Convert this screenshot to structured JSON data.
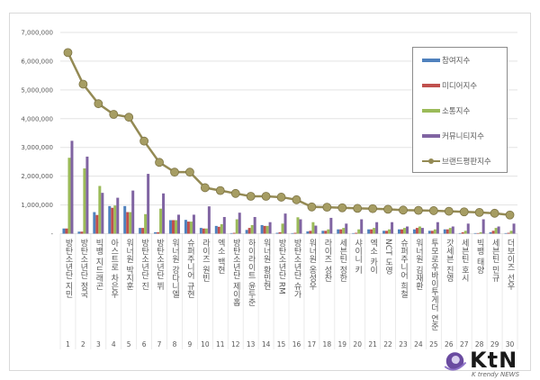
{
  "chart_data": {
    "type": "bar",
    "title": "",
    "xlabel": "",
    "ylabel": "",
    "ylim": [
      0,
      7000000
    ],
    "yticks": [
      "-",
      "1,000,000",
      "2,000,000",
      "3,000,000",
      "4,000,000",
      "5,000,000",
      "6,000,000",
      "7,000,000"
    ],
    "grid": true,
    "legend_position": "top-right",
    "categories": [
      "방탄소년단 지민",
      "방탄소년단 정국",
      "빅뱅 지드래곤",
      "아스트로 차은우",
      "워너원 박지훈",
      "방탄소년단 진",
      "방탄소년단 뷔",
      "워너원 강다니엘",
      "슈퍼주니어 규현",
      "라이즈 원빈",
      "엑소 백현",
      "방탄소년단 제이홉",
      "하이라이트 윤두준",
      "워너원 황민현",
      "방탄소년단 RM",
      "방탄소년단 슈가",
      "워너원 옹성우",
      "라이즈 성찬",
      "세븐틴 정한",
      "샤이니 키",
      "엑소 카이",
      "NCT 도영",
      "슈퍼주니어 희철",
      "워너원 김재환",
      "투모로우바이투게더 연준",
      "갓세븐 진영",
      "세븐틴 호시",
      "빅뱅 태양",
      "세븐틴 민규",
      "더보이즈 선우"
    ],
    "category_numbers": [
      "1",
      "2",
      "3",
      "4",
      "5",
      "6",
      "7",
      "8",
      "9",
      "10",
      "11",
      "12",
      "13",
      "14",
      "15",
      "16",
      "17",
      "18",
      "19",
      "20",
      "21",
      "22",
      "23",
      "24",
      "25",
      "26",
      "27",
      "28",
      "29",
      "30"
    ],
    "series": [
      {
        "name": "참여지수",
        "kind": "bar",
        "color": "#4f81bd",
        "values": [
          180000,
          70000,
          750000,
          960000,
          960000,
          200000,
          50000,
          470000,
          480000,
          200000,
          270000,
          20000,
          130000,
          300000,
          30000,
          20000,
          80000,
          100000,
          150000,
          20000,
          150000,
          100000,
          150000,
          150000,
          100000,
          150000,
          20000,
          20000,
          50000,
          20000
        ]
      },
      {
        "name": "미디어지수",
        "kind": "bar",
        "color": "#c0504d",
        "values": [
          180000,
          70000,
          650000,
          900000,
          750000,
          200000,
          50000,
          470000,
          420000,
          180000,
          240000,
          30000,
          200000,
          270000,
          50000,
          30000,
          100000,
          100000,
          150000,
          30000,
          150000,
          100000,
          150000,
          200000,
          100000,
          150000,
          50000,
          20000,
          100000,
          30000
        ]
      },
      {
        "name": "소통지수",
        "kind": "bar",
        "color": "#9bbb59",
        "values": [
          2640000,
          2270000,
          1660000,
          980000,
          750000,
          680000,
          870000,
          470000,
          420000,
          180000,
          330000,
          500000,
          300000,
          270000,
          350000,
          570000,
          400000,
          150000,
          200000,
          150000,
          200000,
          150000,
          200000,
          250000,
          150000,
          200000,
          100000,
          50000,
          200000,
          100000
        ]
      },
      {
        "name": "커뮤니티지수",
        "kind": "bar",
        "color": "#8064a2",
        "values": [
          3230000,
          2680000,
          1420000,
          1250000,
          1500000,
          2080000,
          1400000,
          660000,
          660000,
          950000,
          580000,
          730000,
          580000,
          400000,
          700000,
          500000,
          280000,
          550000,
          350000,
          500000,
          400000,
          400000,
          250000,
          200000,
          400000,
          250000,
          350000,
          500000,
          250000,
          350000
        ]
      },
      {
        "name": "브랜드평판지수",
        "kind": "line",
        "color": "#948a54",
        "values": [
          6300000,
          5200000,
          4520000,
          4150000,
          4050000,
          3220000,
          2480000,
          2140000,
          2140000,
          1600000,
          1500000,
          1400000,
          1300000,
          1300000,
          1270000,
          1180000,
          930000,
          920000,
          900000,
          880000,
          870000,
          850000,
          820000,
          810000,
          800000,
          780000,
          760000,
          740000,
          710000,
          650000
        ]
      }
    ]
  },
  "logo": {
    "name": "KtN",
    "tagline": "K trendy NEWS"
  }
}
